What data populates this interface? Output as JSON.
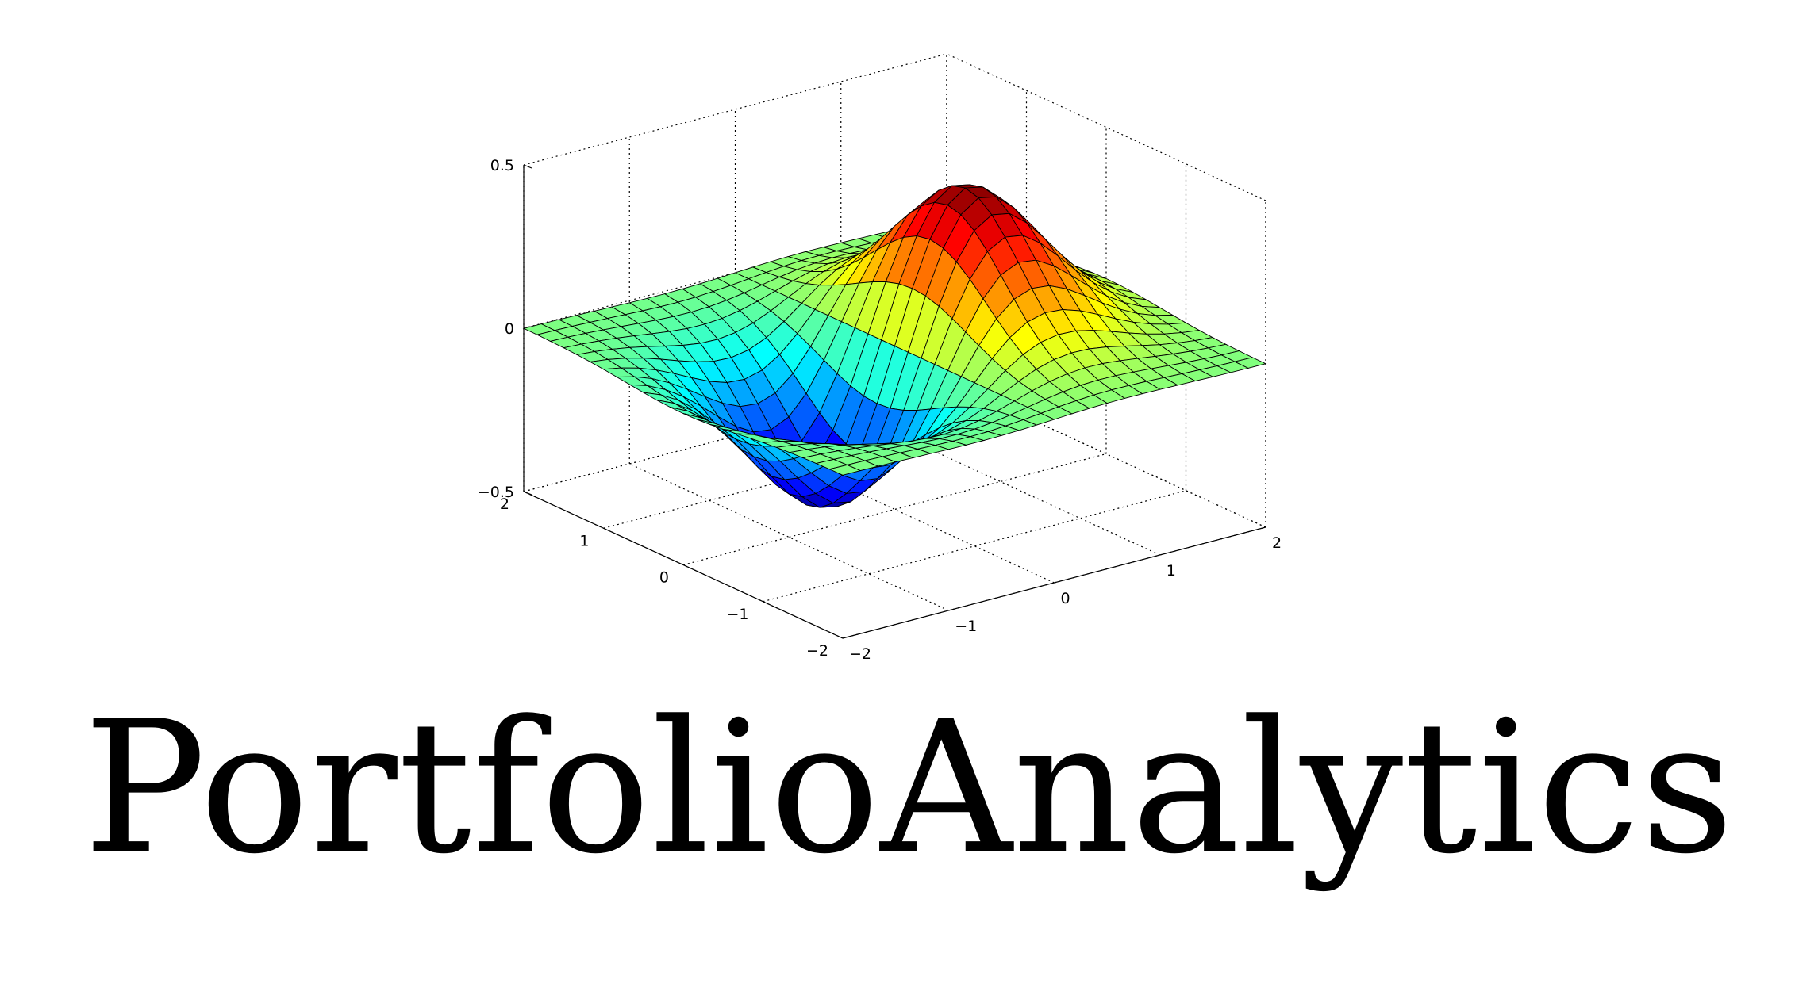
{
  "title": "PortfolioAnalytics",
  "chart_data": {
    "type": "surface",
    "function": "z = x * exp(-x^2 - y^2)",
    "x_range": [
      -2,
      2
    ],
    "y_range": [
      -2,
      2
    ],
    "zlim": [
      -0.5,
      0.5
    ],
    "grid_size": 25,
    "x_ticks": [
      "−2",
      "−1",
      "0",
      "1",
      "2"
    ],
    "y_ticks": [
      "−2",
      "−1",
      "0",
      "1",
      "2"
    ],
    "z_ticks": [
      "−0.5",
      "0",
      "0.5"
    ],
    "grid": true,
    "colormap": "jet"
  }
}
